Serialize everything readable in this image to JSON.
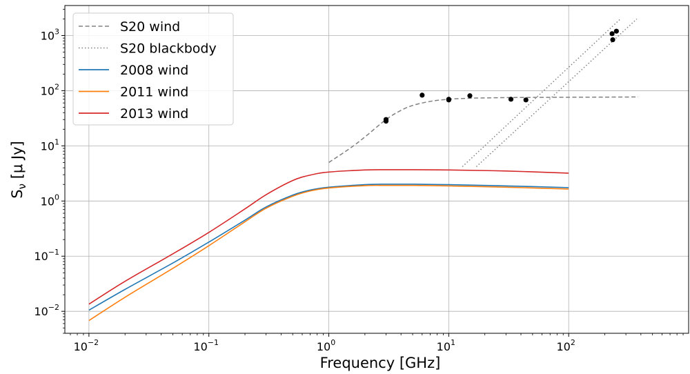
{
  "chart_data": {
    "type": "line",
    "title": "",
    "xlabel": "Frequency [GHz]",
    "ylabel": "S_ν [μ Jy]",
    "xscale": "log",
    "yscale": "log",
    "xlim": [
      0.0063,
      1000
    ],
    "ylim": [
      0.004,
      3500
    ],
    "grid": true,
    "legend_position": "top-left",
    "x_ticks": [
      {
        "value": 0.01,
        "base": "10",
        "exp": "−2"
      },
      {
        "value": 0.1,
        "base": "10",
        "exp": "−1"
      },
      {
        "value": 1,
        "base": "10",
        "exp": "0"
      },
      {
        "value": 10,
        "base": "10",
        "exp": "1"
      },
      {
        "value": 100,
        "base": "10",
        "exp": "2"
      }
    ],
    "y_ticks": [
      {
        "value": 0.01,
        "base": "10",
        "exp": "−2"
      },
      {
        "value": 0.1,
        "base": "10",
        "exp": "−1"
      },
      {
        "value": 1,
        "base": "10",
        "exp": "0"
      },
      {
        "value": 10,
        "base": "10",
        "exp": "1"
      },
      {
        "value": 100,
        "base": "10",
        "exp": "2"
      },
      {
        "value": 1000,
        "base": "10",
        "exp": "3"
      }
    ],
    "series": [
      {
        "name": "S20 wind",
        "style": "dashed",
        "color": "#808080",
        "x": [
          1.0,
          1.5,
          2.0,
          3.0,
          4.0,
          5.0,
          7.0,
          10.0,
          15.0,
          20.0,
          30.0,
          50.0,
          100.0,
          200.0,
          380.0
        ],
        "y": [
          5.0,
          9.0,
          14.5,
          30.0,
          44.0,
          54.0,
          64.0,
          70.0,
          73.0,
          74.0,
          75.0,
          75.5,
          76.0,
          76.5,
          77.0
        ]
      },
      {
        "name": "S20 blackbody",
        "style": "dotted",
        "color": "#808080",
        "x": [
          13.0,
          270.0
        ],
        "y": [
          4.2,
          2000.0
        ]
      },
      {
        "name": "",
        "style": "dotted",
        "color": "#808080",
        "x": [
          17.0,
          370.0
        ],
        "y": [
          4.2,
          2000.0
        ]
      },
      {
        "name": "2008 wind",
        "style": "solid",
        "color": "#1f77b4",
        "x": [
          0.01,
          0.02,
          0.05,
          0.1,
          0.2,
          0.3,
          0.5,
          0.7,
          1.0,
          2.0,
          3.0,
          5.0,
          10.0,
          30.0,
          100.0
        ],
        "y": [
          0.0105,
          0.025,
          0.075,
          0.18,
          0.45,
          0.78,
          1.28,
          1.58,
          1.78,
          1.98,
          2.02,
          2.02,
          1.98,
          1.88,
          1.75
        ]
      },
      {
        "name": "2011 wind",
        "style": "solid",
        "color": "#ff7f0e",
        "x": [
          0.01,
          0.02,
          0.05,
          0.1,
          0.2,
          0.3,
          0.5,
          0.7,
          1.0,
          2.0,
          3.0,
          5.0,
          10.0,
          30.0,
          100.0
        ],
        "y": [
          0.0068,
          0.018,
          0.06,
          0.155,
          0.42,
          0.74,
          1.22,
          1.52,
          1.72,
          1.9,
          1.92,
          1.92,
          1.88,
          1.78,
          1.65
        ]
      },
      {
        "name": "2013 wind",
        "style": "solid",
        "color": "#d62728",
        "x": [
          0.01,
          0.02,
          0.05,
          0.1,
          0.2,
          0.3,
          0.5,
          0.7,
          1.0,
          2.0,
          3.0,
          5.0,
          10.0,
          30.0,
          100.0
        ],
        "y": [
          0.0135,
          0.035,
          0.11,
          0.27,
          0.72,
          1.3,
          2.35,
          2.95,
          3.35,
          3.65,
          3.7,
          3.7,
          3.65,
          3.5,
          3.2
        ]
      }
    ],
    "points": {
      "color": "#000000",
      "x": [
        3.0,
        3.0,
        6.0,
        10.0,
        10.0,
        15.0,
        33.0,
        44.0,
        230.0,
        233.0,
        250.0
      ],
      "y": [
        30.0,
        28.0,
        83.0,
        70.0,
        68.0,
        81.0,
        70.0,
        68.0,
        1080.0,
        840.0,
        1200.0
      ]
    }
  }
}
